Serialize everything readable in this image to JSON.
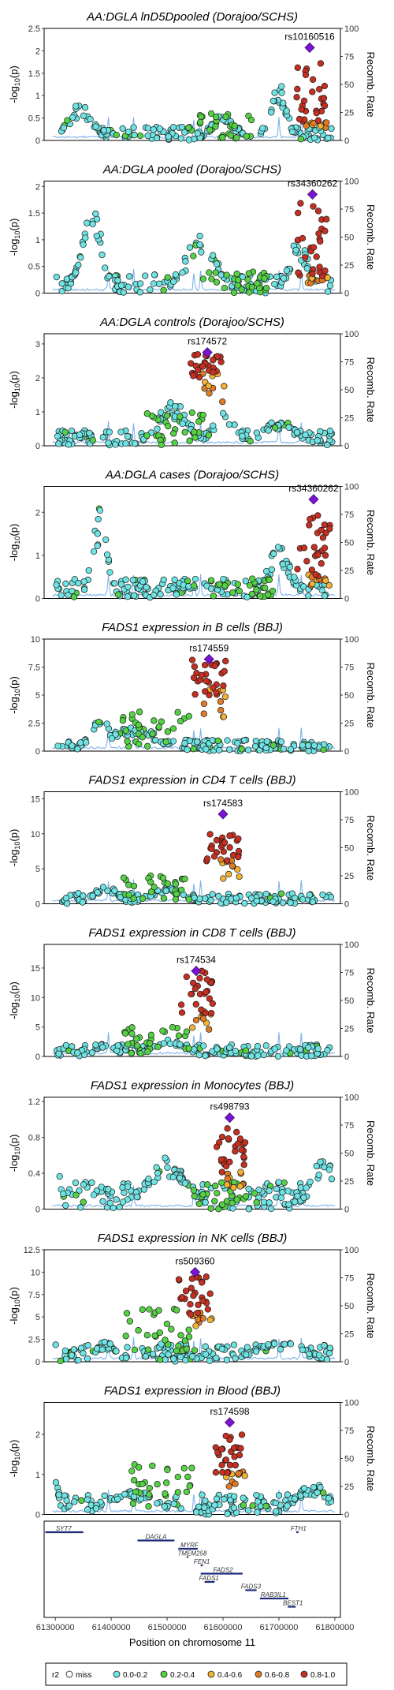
{
  "colors": {
    "miss": "#ffffff",
    "r2_0_0.2": "#6fe3e3",
    "r2_0.2_0.4": "#55d244",
    "r2_0.4_0.6": "#f3b233",
    "r2_0.6_0.8": "#e07b24",
    "r2_0.8_1.0": "#c53022",
    "lead": "#7b14d2",
    "recomb": "#7fb3ea",
    "gene": "#1f2a7a"
  },
  "chart_data": [
    {
      "type": "scatter",
      "title": "AA:DGLA lnD5Dpooled (Dorajoo/SCHS)",
      "ylabel": "-log10(p)",
      "y2label": "Recomb. Rate",
      "ylim": [
        0,
        2.5
      ],
      "yticks": [
        0,
        0.5,
        1,
        1.5,
        2,
        2.5
      ],
      "y2lim": [
        0,
        100
      ],
      "y2ticks": [
        0,
        25,
        50,
        75,
        100
      ],
      "lead_snp": "rs10160516",
      "lead": {
        "x": 61755000,
        "y": 2.07
      },
      "shape": {
        "base": [
          0,
          0.3
        ],
        "ld": [
          0,
          0.6
        ],
        "ld_amp": 0.3,
        "ld_center": 61595000,
        "hi": [
          0.4,
          1.8
        ],
        "peaks": [
          [
            61345000,
            0.85,
            30000
          ],
          [
            61600000,
            0.6,
            30000
          ],
          [
            61700000,
            1.3,
            20000
          ]
        ]
      }
    },
    {
      "type": "scatter",
      "title": "AA:DGLA pooled (Dorajoo/SCHS)",
      "ylabel": "-log10(p)",
      "y2label": "Recomb. Rate",
      "ylim": [
        0,
        2.1
      ],
      "yticks": [
        0,
        0.5,
        1,
        1.5,
        2
      ],
      "y2lim": [
        0,
        100
      ],
      "y2ticks": [
        0,
        25,
        50,
        75,
        100
      ],
      "lead_snp": "rs34360262",
      "lead": {
        "x": 61760000,
        "y": 1.85
      },
      "shape": {
        "base": [
          0,
          0.35
        ],
        "ld": [
          0,
          0.4
        ],
        "ld_amp": 0.2,
        "ld_center": 61620000,
        "hi": [
          0.3,
          1.7
        ],
        "peaks": [
          [
            61365000,
            1.7,
            25000
          ],
          [
            61560000,
            1.1,
            40000
          ],
          [
            61735000,
            1.0,
            25000
          ]
        ]
      }
    },
    {
      "type": "scatter",
      "title": "AA:DGLA controls (Dorajoo/SCHS)",
      "ylabel": "-log10(p)",
      "y2label": "Recomb. Rate",
      "ylim": [
        0,
        3.3
      ],
      "yticks": [
        0,
        1,
        2,
        3
      ],
      "y2lim": [
        0,
        100
      ],
      "y2ticks": [
        0,
        25,
        50,
        75,
        100
      ],
      "lead_snp": "rs174572",
      "lead": {
        "x": 61572000,
        "y": 2.75
      },
      "shape": {
        "base": [
          0,
          0.45
        ],
        "ld": [
          0,
          1.0
        ],
        "ld_amp": 0.5,
        "ld_center": 61520000,
        "hi": [
          2.0,
          2.7
        ],
        "peaks": [
          [
            61510000,
            1.3,
            40000
          ],
          [
            61600000,
            1.0,
            30000
          ],
          [
            61700000,
            0.8,
            40000
          ]
        ]
      }
    },
    {
      "type": "scatter",
      "title": "AA:DGLA cases (Dorajoo/SCHS)",
      "ylabel": "-log10(p)",
      "y2label": "Recomb. Rate",
      "ylim": [
        0,
        2.6
      ],
      "yticks": [
        0,
        1,
        2
      ],
      "y2lim": [
        0,
        100
      ],
      "y2ticks": [
        0,
        25,
        50,
        75,
        100
      ],
      "lead_snp": "rs34360262",
      "lead": {
        "x": 61762000,
        "y": 2.3
      },
      "shape": {
        "base": [
          0,
          0.45
        ],
        "ld": [
          0,
          0.5
        ],
        "ld_amp": 0.3,
        "ld_center": 61630000,
        "hi": [
          0.5,
          2.0
        ],
        "peaks": [
          [
            61380000,
            2.1,
            20000
          ],
          [
            61560000,
            0.4,
            40000
          ],
          [
            61700000,
            1.2,
            30000
          ]
        ]
      }
    },
    {
      "type": "scatter",
      "title": "FADS1 expression in B cells (BBJ)",
      "ylabel": "-log10(p)",
      "y2label": "Recomb. Rate",
      "ylim": [
        0,
        10
      ],
      "yticks": [
        0,
        2.5,
        5,
        7.5,
        10
      ],
      "y2lim": [
        0,
        100
      ],
      "y2ticks": [
        0,
        25,
        50,
        75,
        100
      ],
      "lead_snp": "rs174559",
      "lead": {
        "x": 61575000,
        "y": 8.2
      },
      "shape": {
        "base": [
          0,
          1.0
        ],
        "ld": [
          0.4,
          3.5
        ],
        "ld_amp": 1.5,
        "ld_center": 61480000,
        "hi": [
          5.0,
          8.2
        ],
        "peaks": [
          [
            61380000,
            3.3,
            25000
          ],
          [
            61440000,
            2.3,
            60000
          ]
        ]
      }
    },
    {
      "type": "scatter",
      "title": "FADS1 expression in CD4 T cells (BBJ)",
      "ylabel": "-log10(p)",
      "y2label": "Recomb. Rate",
      "ylim": [
        0,
        16
      ],
      "yticks": [
        0,
        5,
        10,
        15
      ],
      "y2lim": [
        0,
        100
      ],
      "y2ticks": [
        0,
        25,
        50,
        75,
        100
      ],
      "lead_snp": "rs174583",
      "lead": {
        "x": 61600000,
        "y": 12.8
      },
      "shape": {
        "base": [
          0,
          1.5
        ],
        "ld": [
          0.5,
          4
        ],
        "ld_amp": 2,
        "ld_center": 61480000,
        "hi": [
          6,
          10
        ],
        "peaks": [
          [
            61390000,
            3.0,
            25000
          ],
          [
            61500000,
            2.5,
            40000
          ]
        ]
      }
    },
    {
      "type": "scatter",
      "title": "FADS1 expression in CD8 T cells (BBJ)",
      "ylabel": "-log10(p)",
      "y2label": "Recomb. Rate",
      "ylim": [
        0,
        19
      ],
      "yticks": [
        0,
        5,
        10,
        15
      ],
      "y2lim": [
        0,
        100
      ],
      "y2ticks": [
        0,
        25,
        50,
        75,
        100
      ],
      "lead_snp": "rs174534",
      "lead": {
        "x": 61552000,
        "y": 14.5
      },
      "shape": {
        "base": [
          0,
          2
        ],
        "ld": [
          0.5,
          5
        ],
        "ld_amp": 2.5,
        "ld_center": 61480000,
        "hi": [
          7,
          14.5
        ],
        "peaks": [
          [
            61390000,
            2.5,
            25000
          ],
          [
            61500000,
            3.0,
            40000
          ]
        ]
      }
    },
    {
      "type": "scatter",
      "title": "FADS1 expression in Monocytes (BBJ)",
      "ylabel": "-log10(p)",
      "y2label": "Recomb. Rate",
      "ylim": [
        0,
        1.25
      ],
      "yticks": [
        0,
        0.4,
        0.8,
        1.2
      ],
      "y2lim": [
        0,
        100
      ],
      "y2ticks": [
        0,
        25,
        50,
        75,
        100
      ],
      "lead_snp": "rs498793",
      "lead": {
        "x": 61612000,
        "y": 1.02
      },
      "shape": {
        "base": [
          0,
          0.3
        ],
        "ld": [
          0,
          0.3
        ],
        "ld_amp": 0.15,
        "ld_center": 61600000,
        "hi": [
          0.4,
          0.9
        ],
        "peaks": [
          [
            61300000,
            0.8,
            10000
          ],
          [
            61500000,
            0.6,
            50000
          ],
          [
            61780000,
            0.6,
            30000
          ]
        ]
      }
    },
    {
      "type": "scatter",
      "title": "FADS1 expression in NK cells (BBJ)",
      "ylabel": "-log10(p)",
      "y2label": "Recomb. Rate",
      "ylim": [
        0,
        12.5
      ],
      "yticks": [
        0,
        2.5,
        5,
        7.5,
        10,
        12.5
      ],
      "y2lim": [
        0,
        100
      ],
      "y2ticks": [
        0,
        25,
        50,
        75,
        100
      ],
      "lead_snp": "rs509360",
      "lead": {
        "x": 61550000,
        "y": 10.0
      },
      "shape": {
        "base": [
          0,
          2
        ],
        "ld": [
          1,
          6
        ],
        "ld_amp": 3,
        "ld_center": 61480000,
        "hi": [
          5,
          9.5
        ],
        "peaks": [
          [
            61390000,
            2.3,
            25000
          ],
          [
            61700000,
            2.3,
            60000
          ]
        ]
      }
    },
    {
      "type": "scatter",
      "title": "FADS1 expression in Blood (BBJ)",
      "ylabel": "-log10(p)",
      "y2label": "Recomb. Rate",
      "ylim": [
        0,
        2.8
      ],
      "yticks": [
        0,
        1,
        2
      ],
      "y2lim": [
        0,
        100
      ],
      "y2ticks": [
        0,
        25,
        50,
        75,
        100
      ],
      "lead_snp": "rs174598",
      "lead": {
        "x": 61612000,
        "y": 2.3
      },
      "shape": {
        "base": [
          0,
          0.5
        ],
        "ld": [
          0.2,
          1.3
        ],
        "ld_amp": 0.6,
        "ld_center": 61490000,
        "hi": [
          1.0,
          2.0
        ],
        "peaks": [
          [
            61300000,
            0.9,
            10000
          ],
          [
            61440000,
            0.6,
            60000
          ],
          [
            61760000,
            0.8,
            40000
          ]
        ]
      }
    }
  ],
  "genes": [
    {
      "name": "SYT7",
      "start": 61282000,
      "end": 61350000,
      "row": 0,
      "x": 61315000
    },
    {
      "name": "FTH1",
      "start": 61731000,
      "end": 61735000,
      "row": 0,
      "x": 61735000
    },
    {
      "name": "DAGLA",
      "start": 61447000,
      "end": 61513000,
      "row": 1,
      "x": 61480000
    },
    {
      "name": "MYRF",
      "start": 61520000,
      "end": 61555000,
      "row": 2,
      "x": 61540000
    },
    {
      "name": "TMEM258",
      "start": 61535000,
      "end": 61538000,
      "row": 3,
      "x": 61545000
    },
    {
      "name": "FEN1",
      "start": 61560000,
      "end": 61564000,
      "row": 4,
      "x": 61562000
    },
    {
      "name": "FADS2",
      "start": 61560000,
      "end": 61635000,
      "row": 5,
      "x": 61600000
    },
    {
      "name": "FADS1",
      "start": 61567000,
      "end": 61585000,
      "row": 6,
      "x": 61575000
    },
    {
      "name": "FADS3",
      "start": 61640000,
      "end": 61660000,
      "row": 7,
      "x": 61650000
    },
    {
      "name": "RAB3IL1",
      "start": 61666000,
      "end": 61717000,
      "row": 8,
      "x": 61690000
    },
    {
      "name": "BEST1",
      "start": 61716000,
      "end": 61730000,
      "row": 9,
      "x": 61725000
    }
  ],
  "xaxis": {
    "label": "Position on chromosome 11",
    "ticks": [
      61300000,
      61400000,
      61500000,
      61600000,
      61700000,
      61800000
    ],
    "tick_labels": [
      "61300000",
      "61400000",
      "61500000",
      "61600000",
      "61700000",
      "61800000"
    ],
    "range": [
      61280000,
      61810000
    ]
  },
  "legend": {
    "title": "r2",
    "items": [
      {
        "label": "miss",
        "color": "#ffffff"
      },
      {
        "label": "0.0-0.2",
        "color": "#6fe3e3"
      },
      {
        "label": "0.2-0.4",
        "color": "#55d244"
      },
      {
        "label": "0.4-0.6",
        "color": "#f3b233"
      },
      {
        "label": "0.6-0.8",
        "color": "#e07b24"
      },
      {
        "label": "0.8-1.0",
        "color": "#c53022"
      }
    ]
  }
}
